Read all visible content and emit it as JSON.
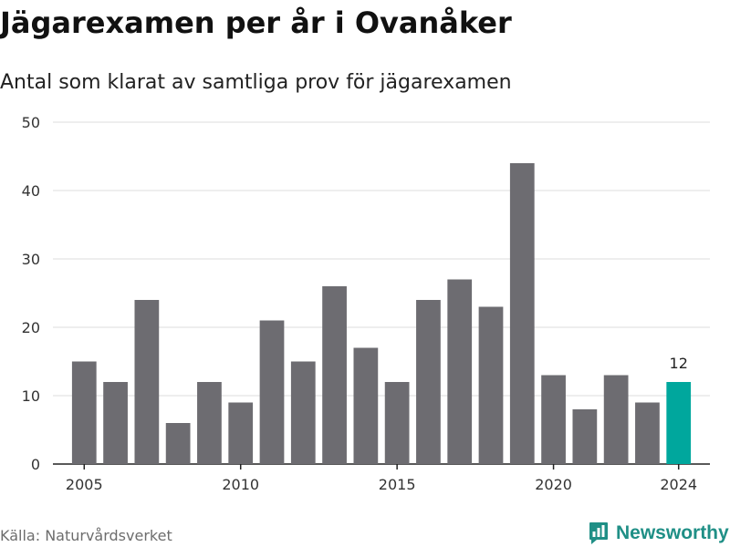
{
  "title": "Jägarexamen per år i Ovanåker",
  "subtitle": "Antal som klarat av samtliga prov för jägarexamen",
  "source": "Källa: Naturvårdsverket",
  "brand": {
    "name": "Newsworthy",
    "icon": "bar-chart-logo-icon"
  },
  "colors": {
    "bar": "#6d6c71",
    "highlight": "#00a79d",
    "grid": "#dcdcdc",
    "axis": "#222222",
    "brand": "#1f8f86"
  },
  "chart_data": {
    "type": "bar",
    "x": [
      2005,
      2006,
      2007,
      2008,
      2009,
      2010,
      2011,
      2012,
      2013,
      2014,
      2015,
      2016,
      2017,
      2018,
      2019,
      2020,
      2021,
      2022,
      2023,
      2024
    ],
    "values": [
      15,
      12,
      24,
      6,
      12,
      9,
      21,
      15,
      26,
      17,
      12,
      24,
      27,
      23,
      44,
      13,
      8,
      13,
      9,
      12
    ],
    "xticks": [
      "2005",
      "2010",
      "2015",
      "2020",
      "2024"
    ],
    "yticks": [
      "0",
      "10",
      "20",
      "30",
      "40",
      "50"
    ],
    "ylim": [
      0,
      50
    ],
    "grid": true,
    "highlight": {
      "x": 2024,
      "label": "12"
    }
  }
}
